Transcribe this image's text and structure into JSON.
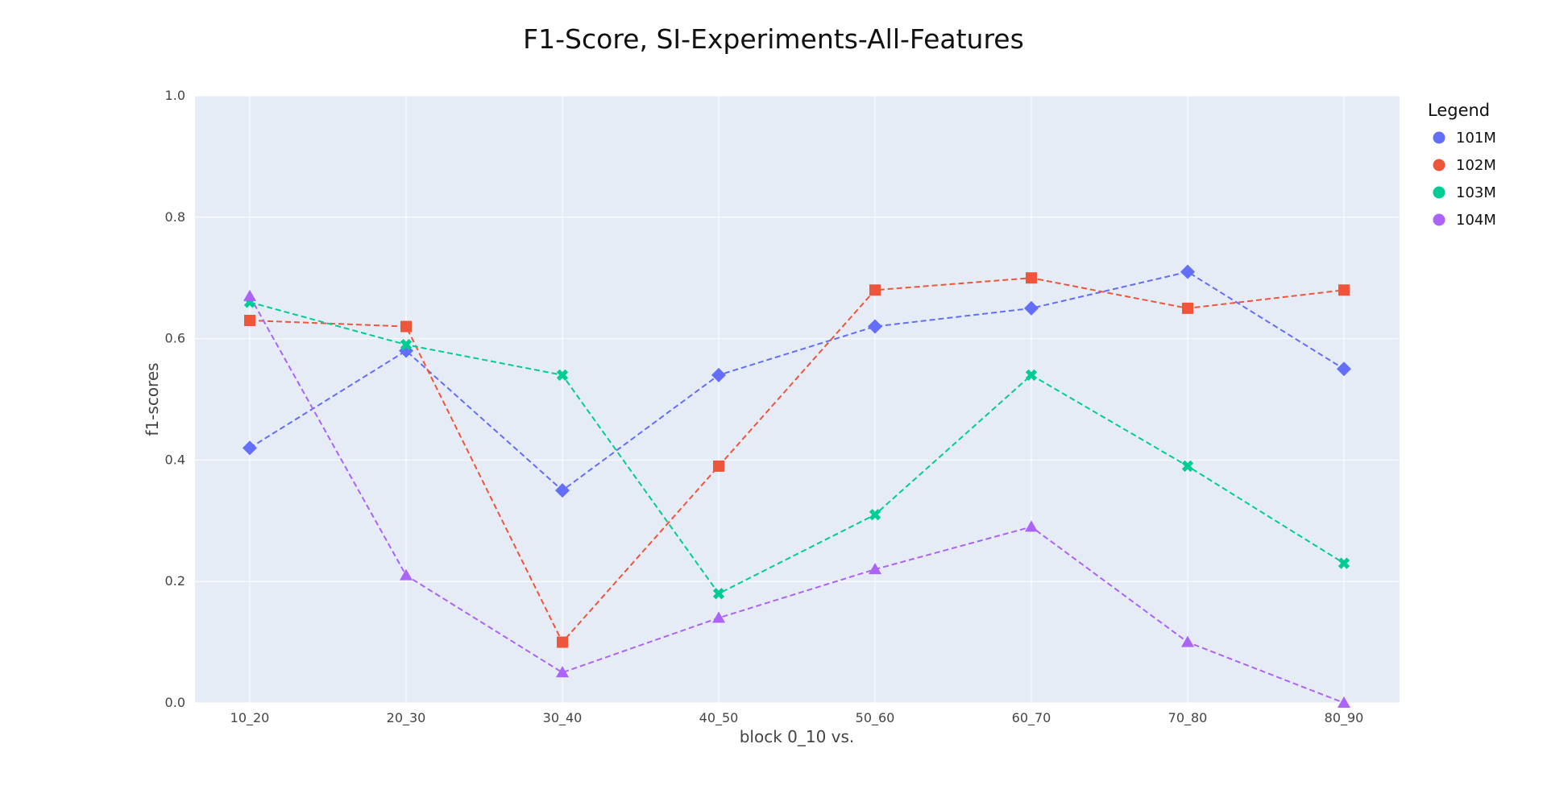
{
  "chart_data": {
    "type": "line",
    "title": "F1-Score, SI-Experiments-All-Features",
    "xlabel": "block 0_10 vs.",
    "ylabel": "f1-scores",
    "categories": [
      "10_20",
      "20_30",
      "30_40",
      "40_50",
      "50_60",
      "60_70",
      "70_80",
      "80_90"
    ],
    "ylim": [
      0,
      1
    ],
    "yticks": [
      "0.0",
      "0.2",
      "0.4",
      "0.6",
      "0.8",
      "1.0"
    ],
    "grid": true,
    "legend_title": "Legend",
    "legend_position": "top-right outside",
    "series": [
      {
        "name": "101M",
        "color": "#636efa",
        "marker": "diamond",
        "values": [
          0.42,
          0.58,
          0.35,
          0.54,
          0.62,
          0.65,
          0.71,
          0.55
        ]
      },
      {
        "name": "102M",
        "color": "#ef553b",
        "marker": "square",
        "values": [
          0.63,
          0.62,
          0.1,
          0.39,
          0.68,
          0.7,
          0.65,
          0.68
        ]
      },
      {
        "name": "103M",
        "color": "#00cc96",
        "marker": "x",
        "values": [
          0.66,
          0.59,
          0.54,
          0.18,
          0.31,
          0.54,
          0.39,
          0.23
        ]
      },
      {
        "name": "104M",
        "color": "#ab63fa",
        "marker": "triangle",
        "values": [
          0.67,
          0.21,
          0.05,
          0.14,
          0.22,
          0.29,
          0.1,
          0.0
        ]
      }
    ]
  }
}
